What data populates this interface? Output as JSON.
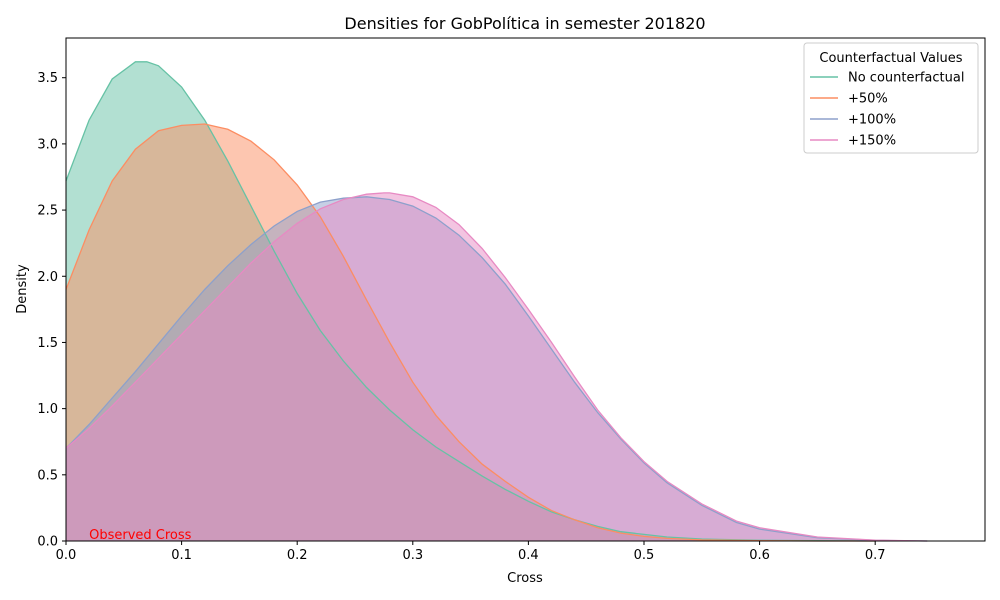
{
  "chart_data": {
    "type": "area",
    "title": "Densities for GobPolítica in semester 201820",
    "xlabel": "Cross",
    "ylabel": "Density",
    "xlim": [
      0.0,
      0.795
    ],
    "ylim": [
      0.0,
      3.8
    ],
    "xticks": [
      "0.0",
      "0.1",
      "0.2",
      "0.3",
      "0.4",
      "0.5",
      "0.6",
      "0.7"
    ],
    "yticks": [
      "0.0",
      "0.5",
      "1.0",
      "1.5",
      "2.0",
      "2.5",
      "3.0",
      "3.5"
    ],
    "grid": false,
    "legend_title": "Counterfactual Values",
    "legend_position": "top-right",
    "annotation": {
      "text": "Observed Cross",
      "x": 0.02,
      "y": 0.0,
      "color": "#ff0000"
    },
    "series": [
      {
        "name": "No counterfactual",
        "color": "#66c2a5",
        "x": [
          0.0,
          0.02,
          0.04,
          0.06,
          0.07,
          0.08,
          0.1,
          0.12,
          0.14,
          0.16,
          0.18,
          0.2,
          0.22,
          0.24,
          0.26,
          0.28,
          0.3,
          0.32,
          0.34,
          0.36,
          0.38,
          0.4,
          0.42,
          0.44,
          0.46,
          0.48,
          0.5,
          0.52,
          0.55,
          0.6,
          0.65,
          0.7
        ],
        "y": [
          2.72,
          3.18,
          3.49,
          3.62,
          3.62,
          3.59,
          3.43,
          3.18,
          2.87,
          2.53,
          2.19,
          1.87,
          1.59,
          1.36,
          1.16,
          0.99,
          0.84,
          0.71,
          0.6,
          0.49,
          0.39,
          0.3,
          0.22,
          0.16,
          0.11,
          0.07,
          0.05,
          0.03,
          0.015,
          0.005,
          0.002,
          0.0
        ]
      },
      {
        "name": "+50%",
        "color": "#fc8d62",
        "x": [
          0.0,
          0.02,
          0.04,
          0.06,
          0.08,
          0.1,
          0.12,
          0.14,
          0.16,
          0.18,
          0.2,
          0.22,
          0.24,
          0.26,
          0.28,
          0.3,
          0.32,
          0.34,
          0.36,
          0.38,
          0.4,
          0.42,
          0.44,
          0.46,
          0.48,
          0.5,
          0.52,
          0.55,
          0.6,
          0.65,
          0.7
        ],
        "y": [
          1.9,
          2.35,
          2.72,
          2.96,
          3.1,
          3.14,
          3.15,
          3.11,
          3.02,
          2.88,
          2.69,
          2.45,
          2.15,
          1.82,
          1.5,
          1.2,
          0.95,
          0.75,
          0.58,
          0.45,
          0.33,
          0.23,
          0.16,
          0.1,
          0.06,
          0.035,
          0.02,
          0.008,
          0.002,
          0.0,
          0.0
        ]
      },
      {
        "name": "+100%",
        "color": "#8da0cb",
        "x": [
          0.0,
          0.02,
          0.04,
          0.06,
          0.08,
          0.1,
          0.12,
          0.14,
          0.16,
          0.18,
          0.2,
          0.22,
          0.24,
          0.26,
          0.28,
          0.3,
          0.32,
          0.34,
          0.36,
          0.38,
          0.4,
          0.42,
          0.44,
          0.46,
          0.48,
          0.5,
          0.52,
          0.55,
          0.58,
          0.6,
          0.65,
          0.7,
          0.745
        ],
        "y": [
          0.7,
          0.88,
          1.08,
          1.28,
          1.49,
          1.7,
          1.9,
          2.08,
          2.24,
          2.38,
          2.49,
          2.56,
          2.59,
          2.6,
          2.58,
          2.53,
          2.44,
          2.31,
          2.14,
          1.94,
          1.7,
          1.45,
          1.2,
          0.97,
          0.77,
          0.59,
          0.44,
          0.27,
          0.14,
          0.09,
          0.025,
          0.005,
          0.0
        ]
      },
      {
        "name": "+150%",
        "color": "#e78ac3",
        "x": [
          0.0,
          0.02,
          0.04,
          0.06,
          0.08,
          0.1,
          0.12,
          0.14,
          0.16,
          0.18,
          0.2,
          0.22,
          0.24,
          0.26,
          0.275,
          0.28,
          0.3,
          0.32,
          0.34,
          0.36,
          0.38,
          0.4,
          0.42,
          0.44,
          0.46,
          0.48,
          0.5,
          0.52,
          0.55,
          0.58,
          0.6,
          0.65,
          0.7,
          0.745
        ],
        "y": [
          0.7,
          0.85,
          1.02,
          1.2,
          1.38,
          1.56,
          1.74,
          1.92,
          2.1,
          2.26,
          2.4,
          2.51,
          2.58,
          2.62,
          2.63,
          2.63,
          2.6,
          2.52,
          2.39,
          2.21,
          1.99,
          1.75,
          1.5,
          1.24,
          0.99,
          0.78,
          0.6,
          0.45,
          0.28,
          0.15,
          0.1,
          0.03,
          0.006,
          0.0
        ]
      }
    ]
  }
}
